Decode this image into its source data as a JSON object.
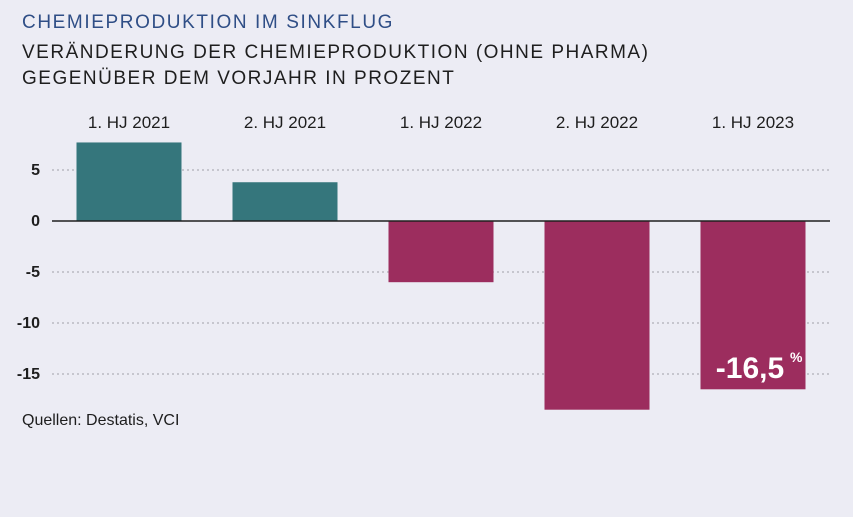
{
  "header": {
    "title": "CHEMIEPRODUKTION IM SINKFLUG",
    "subtitle_line1": "VERÄNDERUNG DER CHEMIEPRODUKTION (OHNE PHARMA)",
    "subtitle_line2": "GEGENÜBER DEM VORJAHR IN PROZENT"
  },
  "footer": {
    "source": "Quellen: Destatis, VCI"
  },
  "colors": {
    "background": "#ececf4",
    "title": "#2f4e86",
    "positive": "#35767c",
    "negative": "#9c2d5e",
    "gridline": "#a0a0a8",
    "axis": "#1e1e1e"
  },
  "chart_data": {
    "type": "bar",
    "categories": [
      "1. HJ 2021",
      "2. HJ 2021",
      "1. HJ 2022",
      "2. HJ 2022",
      "1. HJ 2023"
    ],
    "values": [
      7.7,
      3.8,
      -6.0,
      -18.5,
      -16.5
    ],
    "ylim": [
      -18.5,
      7.7
    ],
    "yticks": [
      5,
      0,
      -5,
      -10,
      -15
    ],
    "ytick_labels": [
      "5",
      "0",
      "-5",
      "-10",
      "-15"
    ],
    "grid": true,
    "category_axis_position": "top",
    "annotation": {
      "category": "1. HJ 2023",
      "number": "-16,5",
      "unit": "%"
    }
  }
}
